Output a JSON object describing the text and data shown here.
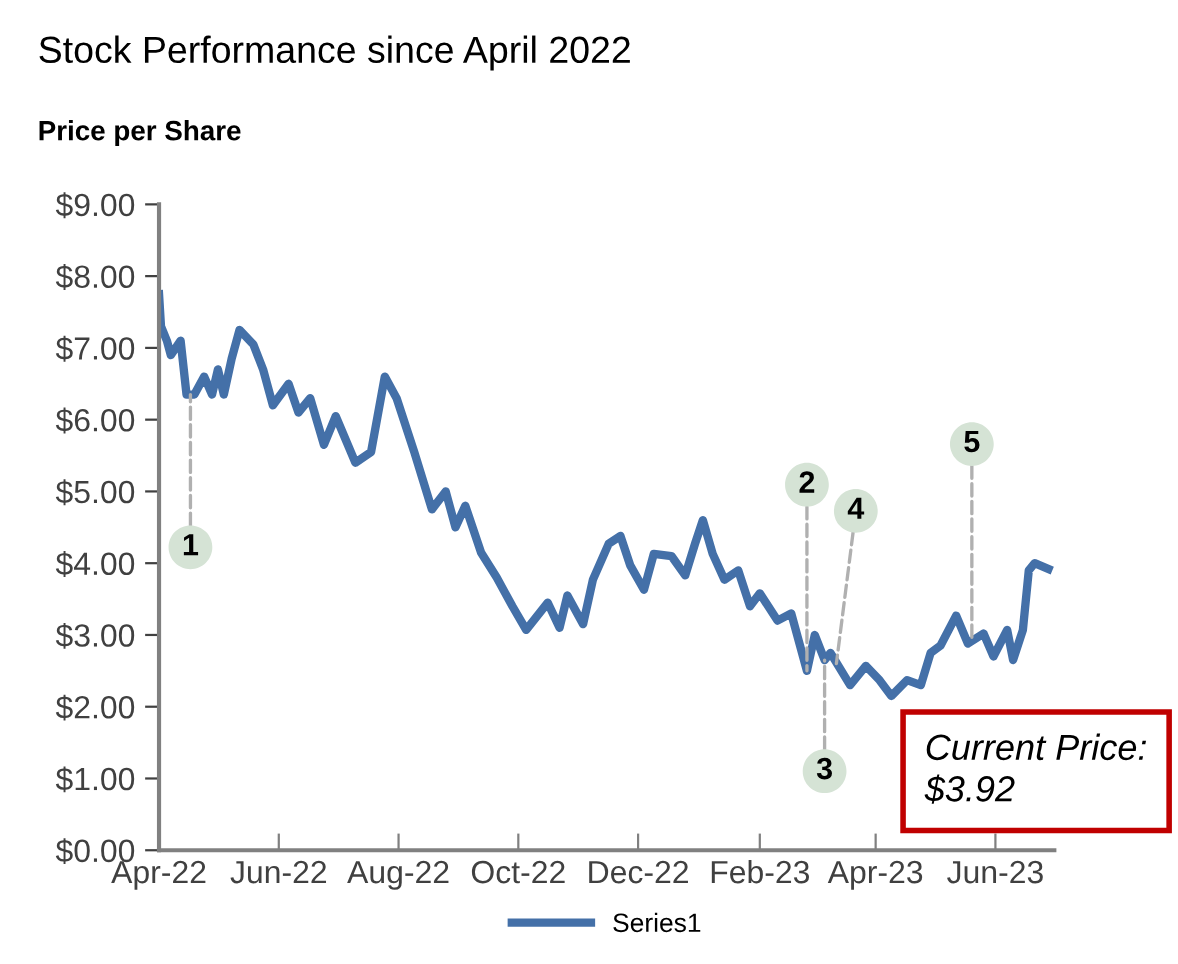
{
  "chart_data": {
    "type": "line",
    "title": "Stock Performance since April 2022",
    "ylabel": "Price per Share",
    "x": [
      "2022-04-01",
      "2022-04-02",
      "2022-04-05",
      "2022-04-07",
      "2022-04-12",
      "2022-04-15",
      "2022-04-19",
      "2022-04-24",
      "2022-04-28",
      "2022-05-01",
      "2022-05-04",
      "2022-05-08",
      "2022-05-12",
      "2022-05-19",
      "2022-05-24",
      "2022-05-29",
      "2022-06-06",
      "2022-06-11",
      "2022-06-17",
      "2022-06-24",
      "2022-06-30",
      "2022-07-10",
      "2022-07-18",
      "2022-07-25",
      "2022-07-31",
      "2022-08-09",
      "2022-08-18",
      "2022-08-25",
      "2022-08-30",
      "2022-09-04",
      "2022-09-12",
      "2022-09-20",
      "2022-09-28",
      "2022-10-05",
      "2022-10-16",
      "2022-10-22",
      "2022-10-26",
      "2022-11-03",
      "2022-11-08",
      "2022-11-16",
      "2022-11-22",
      "2022-11-27",
      "2022-12-04",
      "2022-12-09",
      "2022-12-18",
      "2022-12-25",
      "2022-12-30",
      "2023-01-03",
      "2023-01-08",
      "2023-01-14",
      "2023-01-21",
      "2023-01-27",
      "2023-02-01",
      "2023-02-10",
      "2023-02-17",
      "2023-02-25",
      "2023-03-01",
      "2023-03-06",
      "2023-03-09",
      "2023-03-19",
      "2023-03-27",
      "2023-04-03",
      "2023-04-09",
      "2023-04-17",
      "2023-04-24",
      "2023-04-29",
      "2023-05-04",
      "2023-05-12",
      "2023-05-18",
      "2023-05-26",
      "2023-05-31",
      "2023-06-07",
      "2023-06-10",
      "2023-06-15",
      "2023-06-18",
      "2023-06-21",
      "2023-06-28"
    ],
    "series": [
      {
        "name": "Series1",
        "color": "#4470a8",
        "values": [
          7.75,
          7.3,
          7.1,
          6.9,
          7.1,
          6.35,
          6.35,
          6.6,
          6.35,
          6.7,
          6.35,
          6.85,
          7.25,
          7.05,
          6.7,
          6.2,
          6.5,
          6.1,
          6.3,
          5.65,
          6.05,
          5.4,
          5.55,
          6.6,
          6.3,
          5.55,
          4.75,
          5.0,
          4.5,
          4.8,
          4.15,
          3.8,
          3.4,
          3.07,
          3.45,
          3.1,
          3.55,
          3.15,
          3.77,
          4.27,
          4.38,
          3.97,
          3.63,
          4.13,
          4.1,
          3.83,
          4.27,
          4.6,
          4.13,
          3.77,
          3.9,
          3.4,
          3.58,
          3.2,
          3.3,
          2.5,
          3.0,
          2.65,
          2.75,
          2.3,
          2.57,
          2.37,
          2.15,
          2.37,
          2.3,
          2.75,
          2.85,
          3.27,
          2.88,
          3.02,
          2.7,
          3.07,
          2.65,
          3.07,
          3.9,
          4.0,
          3.92
        ]
      }
    ],
    "xlim": [
      "2022-04-01",
      "2023-07-01"
    ],
    "xticks": [
      {
        "value": "2022-04-01",
        "label": "Apr-22"
      },
      {
        "value": "2022-06-01",
        "label": "Jun-22"
      },
      {
        "value": "2022-08-01",
        "label": "Aug-22"
      },
      {
        "value": "2022-10-01",
        "label": "Oct-22"
      },
      {
        "value": "2022-12-01",
        "label": "Dec-22"
      },
      {
        "value": "2023-02-01",
        "label": "Feb-23"
      },
      {
        "value": "2023-04-01",
        "label": "Apr-23"
      },
      {
        "value": "2023-06-01",
        "label": "Jun-23"
      }
    ],
    "ylim": [
      0,
      9
    ],
    "yticks": [
      {
        "value": 0,
        "label": "$0.00"
      },
      {
        "value": 1,
        "label": "$1.00"
      },
      {
        "value": 2,
        "label": "$2.00"
      },
      {
        "value": 3,
        "label": "$3.00"
      },
      {
        "value": 4,
        "label": "$4.00"
      },
      {
        "value": 5,
        "label": "$5.00"
      },
      {
        "value": 6,
        "label": "$6.00"
      },
      {
        "value": 7,
        "label": "$7.00"
      },
      {
        "value": 8,
        "label": "$8.00"
      },
      {
        "value": 9,
        "label": "$9.00"
      }
    ],
    "annotations": [
      {
        "text": "1",
        "x": "2022-04-17",
        "y": 6.35
      },
      {
        "text": "2",
        "x": "2023-02-25",
        "y": 2.5
      },
      {
        "text": "3",
        "x": "2023-03-06",
        "y": 2.65
      },
      {
        "text": "4",
        "x": "2023-03-12",
        "y": 2.6
      },
      {
        "text": "5",
        "x": "2023-05-20",
        "y": 2.95
      },
      "Current Price:\n$3.92"
    ],
    "legend": "bottom",
    "grid": false,
    "marker": "none",
    "line_style": "solid"
  }
}
